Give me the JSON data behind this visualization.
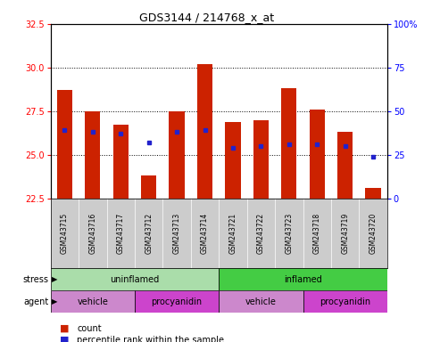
{
  "title": "GDS3144 / 214768_x_at",
  "samples": [
    "GSM243715",
    "GSM243716",
    "GSM243717",
    "GSM243712",
    "GSM243713",
    "GSM243714",
    "GSM243721",
    "GSM243722",
    "GSM243723",
    "GSM243718",
    "GSM243719",
    "GSM243720"
  ],
  "bar_tops": [
    28.7,
    27.5,
    26.7,
    23.8,
    27.5,
    30.2,
    26.9,
    27.0,
    28.8,
    27.6,
    26.3,
    23.1
  ],
  "blue_values": [
    26.4,
    26.3,
    26.2,
    25.7,
    26.3,
    26.4,
    25.4,
    25.5,
    25.6,
    25.6,
    25.5,
    24.9
  ],
  "ymin": 22.5,
  "ymax": 32.5,
  "yticks": [
    22.5,
    25.0,
    27.5,
    30.0,
    32.5
  ],
  "right_yticks": [
    0,
    25,
    50,
    75,
    100
  ],
  "bar_color": "#cc2200",
  "blue_color": "#2222cc",
  "stress_groups": [
    {
      "label": "uninflamed",
      "start": 0,
      "end": 6,
      "color": "#aaddaa"
    },
    {
      "label": "inflamed",
      "start": 6,
      "end": 12,
      "color": "#44cc44"
    }
  ],
  "agent_groups": [
    {
      "label": "vehicle",
      "start": 0,
      "end": 3,
      "color": "#cc88cc"
    },
    {
      "label": "procyanidin",
      "start": 3,
      "end": 6,
      "color": "#cc44cc"
    },
    {
      "label": "vehicle",
      "start": 6,
      "end": 9,
      "color": "#cc88cc"
    },
    {
      "label": "procyanidin",
      "start": 9,
      "end": 12,
      "color": "#cc44cc"
    }
  ],
  "legend_count_color": "#cc2200",
  "legend_blue_color": "#2222cc",
  "label_bg_color": "#cccccc",
  "label_divider_color": "#ffffff"
}
